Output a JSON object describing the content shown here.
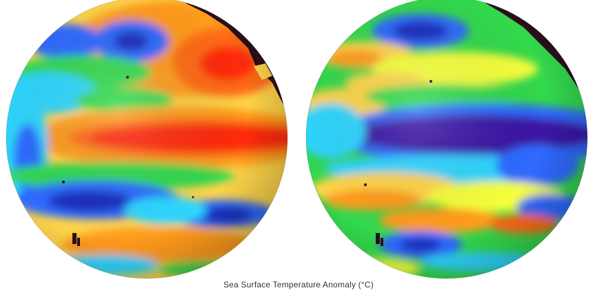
{
  "caption": "Sea Surface Temperature Anomaly (°C)",
  "palette": {
    "background": "#ffffff",
    "land": "#2a0f1c",
    "deep_blue": "#1f2fbf",
    "indigo": "#3a12a6",
    "blue": "#2f6bff",
    "cyan": "#2fd6ff",
    "green": "#33d94d",
    "yellow": "#f6ff3a",
    "orange": "#ff9b1a",
    "red": "#ff2a0a",
    "text": "#333333"
  },
  "globes": [
    {
      "state": "warm equatorial anomaly",
      "equatorial_band_color": "red"
    },
    {
      "state": "cool equatorial anomaly",
      "equatorial_band_color": "indigo"
    }
  ]
}
